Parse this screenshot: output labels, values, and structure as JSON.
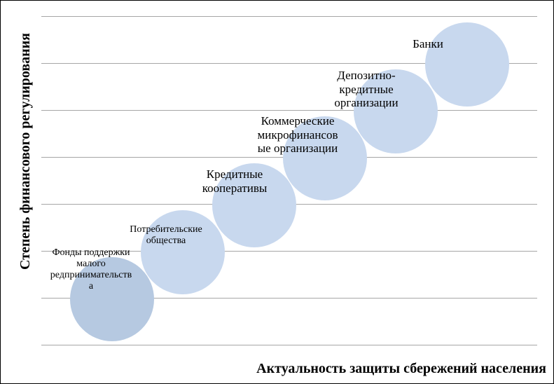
{
  "diagram": {
    "y_axis_label": "Степень финансового регулирования",
    "x_axis_label": "Актуальность защиты сбережений населения",
    "colors": {
      "frame": "#000000",
      "gridline": "#a6a6a6",
      "bubble_dark": "#b6c9e1",
      "bubble_light": "#c8d8ee",
      "text": "#000000"
    },
    "bubbles": [
      {
        "label": "Фонды поддержки\nмалого\nредпринимательств\nа",
        "shade": "dark"
      },
      {
        "label": "Потребительские\nобщества",
        "shade": "light"
      },
      {
        "label": "Кредитные\nкооперативы",
        "shade": "light"
      },
      {
        "label": "Коммерческие\nмикрофинансов\nые организации",
        "shade": "light"
      },
      {
        "label": "Депозитно-\nкредитные\nорганизации",
        "shade": "light"
      },
      {
        "label": "Банки",
        "shade": "light"
      }
    ]
  }
}
